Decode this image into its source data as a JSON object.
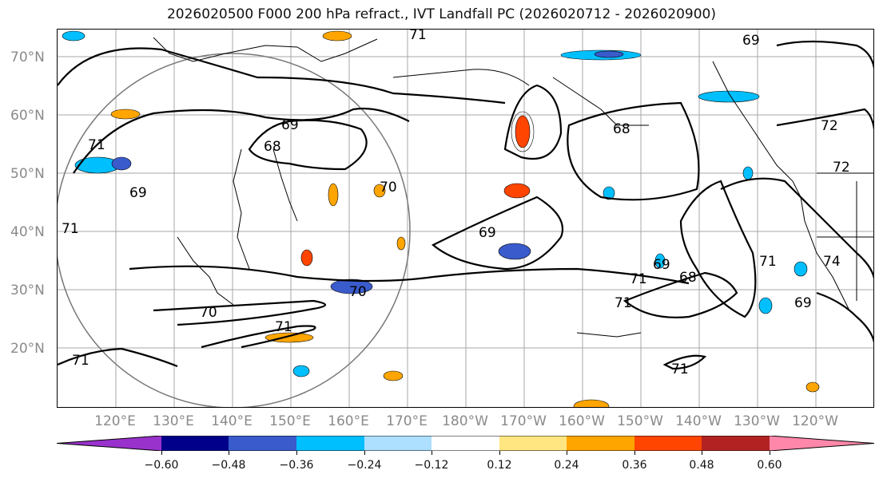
{
  "title": "2026020500 F000 200 hPa refract., IVT Landfall PC (2026020712 - 2026020900)",
  "latitude_labels": [
    "70°N",
    "60°N",
    "50°N",
    "40°N",
    "30°N",
    "20°N"
  ],
  "longitude_labels": [
    "120°E",
    "130°E",
    "140°E",
    "150°E",
    "160°E",
    "170°E",
    "180°W",
    "170°W",
    "160°W",
    "150°W",
    "140°W",
    "130°W",
    "120°W"
  ],
  "contour_labels": [
    "71",
    "69",
    "68",
    "69",
    "70",
    "69",
    "70",
    "70",
    "71",
    "71",
    "71",
    "71",
    "69",
    "68",
    "72",
    "72",
    "71",
    "74",
    "69",
    "68",
    "71",
    "71",
    "71",
    "69"
  ],
  "colorbar": {
    "ticks": [
      "−0.60",
      "−0.48",
      "−0.36",
      "−0.24",
      "−0.12",
      "0.12",
      "0.24",
      "0.36",
      "0.48",
      "0.60"
    ],
    "colors": [
      "#9932CC",
      "#00008B",
      "#3A5BCC",
      "#00BFFF",
      "#ADDFFF",
      "#FFFFFF",
      "#FFE680",
      "#FFA500",
      "#FF4500",
      "#B22222",
      "#FF88AA",
      "#FF88AA"
    ]
  },
  "colors": {
    "frame": "#000000",
    "grid": "#8a8a8a",
    "contour": "#000000"
  }
}
